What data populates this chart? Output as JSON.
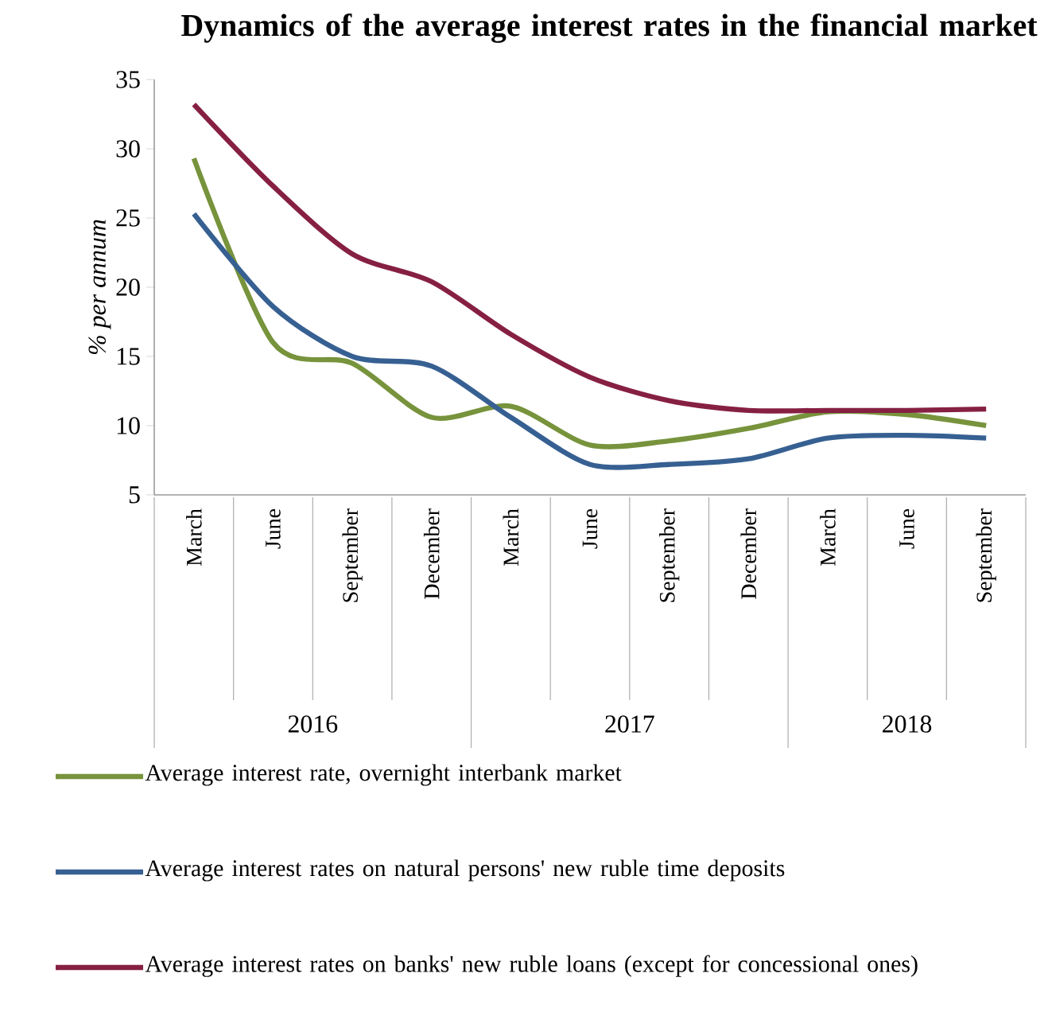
{
  "chart_data": {
    "type": "line",
    "title": "Dynamics of the average interest rates in the financial market",
    "ylabel": "% per annum",
    "categories": [
      "March",
      "June",
      "September",
      "December",
      "March",
      "June",
      "September",
      "December",
      "March",
      "June",
      "September"
    ],
    "annotations": [
      "2016",
      "2017",
      "2018"
    ],
    "series": [
      {
        "name": "Average interest rate, overnight interbank market",
        "color": "#77933c",
        "values": [
          29.3,
          16.0,
          14.5,
          10.6,
          11.4,
          8.6,
          8.9,
          9.8,
          11.0,
          10.8,
          10.0
        ]
      },
      {
        "name": "Average interest rates on natural persons'  new ruble time deposits",
        "color": "#376092",
        "values": [
          25.3,
          18.6,
          15.0,
          14.3,
          10.6,
          7.2,
          7.2,
          7.6,
          9.1,
          9.3,
          9.1
        ]
      },
      {
        "name": "Average interest rates on banks' new ruble loans (except for concessional ones)",
        "color": "#862043",
        "values": [
          33.2,
          27.3,
          22.4,
          20.4,
          16.6,
          13.5,
          11.8,
          11.1,
          11.1,
          11.1,
          11.2
        ]
      }
    ],
    "ylim": [
      5,
      35
    ],
    "yticks": [
      5,
      10,
      15,
      20,
      25,
      30,
      35
    ],
    "grid": false,
    "legend": "bottom",
    "marker": "none",
    "line_style": "solid"
  }
}
